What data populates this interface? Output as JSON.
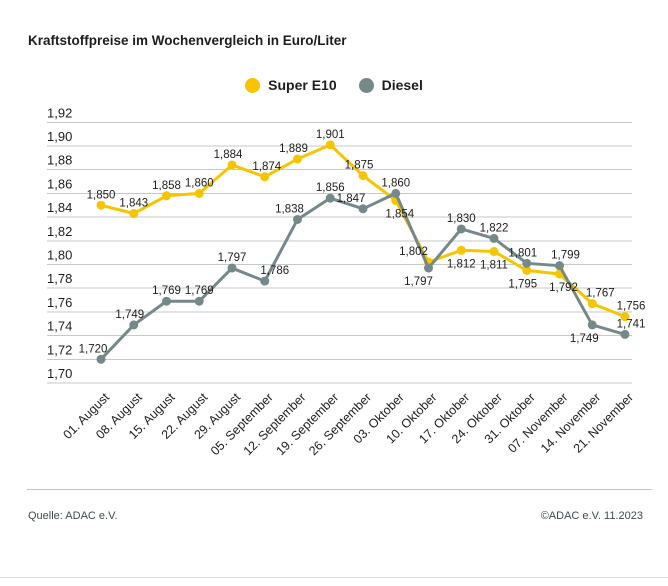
{
  "title": "Kraftstoffpreise im Wochenvergleich in Euro/Liter",
  "legend": {
    "items": [
      {
        "label": "Super E10",
        "color": "#f6c500"
      },
      {
        "label": "Diesel",
        "color": "#75898a"
      }
    ]
  },
  "footer": {
    "source": "Quelle: ADAC e.V.",
    "copyright": "©ADAC e.V. 11.2023"
  },
  "colors": {
    "text": "#1d1d1b",
    "grid": "#c5c9c9",
    "super_e10": "#f6c500",
    "diesel": "#75898a"
  },
  "chart_data": {
    "type": "line",
    "title": "Kraftstoffpreise im Wochenvergleich in Euro/Liter",
    "xlabel": "",
    "ylabel": "Euro/Liter",
    "ylim": [
      1.7,
      1.92
    ],
    "grid": true,
    "legend_position": "top-center",
    "categories": [
      "01. August",
      "08. August",
      "15. August",
      "22. August",
      "29. August",
      "05. September",
      "12. September",
      "19. September",
      "26. September",
      "03. Oktober",
      "10. Oktober",
      "17. Oktober",
      "24. Oktober",
      "31. Oktober",
      "07. November",
      "14. November",
      "21. November"
    ],
    "yticks": {
      "values": [
        1.7,
        1.72,
        1.74,
        1.76,
        1.78,
        1.8,
        1.82,
        1.84,
        1.86,
        1.88,
        1.9,
        1.92
      ],
      "labels": [
        "1,70",
        "1,72",
        "1,74",
        "1,76",
        "1,78",
        "1,80",
        "1,82",
        "1,84",
        "1,86",
        "1,88",
        "1,90",
        "1,92"
      ]
    },
    "series": [
      {
        "name": "Super E10",
        "color": "#f6c500",
        "values": [
          1.85,
          1.843,
          1.858,
          1.86,
          1.884,
          1.874,
          1.889,
          1.901,
          1.875,
          1.854,
          1.802,
          1.812,
          1.811,
          1.795,
          1.792,
          1.767,
          1.756
        ],
        "point_labels": [
          "1,850",
          "1,843",
          "1,858",
          "1,860",
          "1,884",
          "1,874",
          "1,889",
          "1,901",
          "1,875",
          "1,854",
          "1,802",
          "1,812",
          "1,811",
          "1,795",
          "1,792",
          "1,767",
          "1,756"
        ],
        "label_pos": [
          "above",
          "above",
          "above",
          "above",
          "above",
          "above",
          "above",
          "above",
          "above",
          "below",
          "above",
          "below",
          "below",
          "below",
          "below",
          "above",
          "above"
        ],
        "label_dx": [
          0,
          0,
          0,
          0,
          -4,
          2,
          -4,
          0,
          -4,
          4,
          -15,
          0,
          0,
          -4,
          4,
          8,
          6
        ]
      },
      {
        "name": "Diesel",
        "color": "#75898a",
        "values": [
          1.72,
          1.749,
          1.769,
          1.769,
          1.797,
          1.786,
          1.838,
          1.856,
          1.847,
          1.86,
          1.797,
          1.83,
          1.822,
          1.801,
          1.799,
          1.749,
          1.741
        ],
        "point_labels": [
          "1,720",
          "1,749",
          "1,769",
          "1,769",
          "1,797",
          "1,786",
          "1,838",
          "1,856",
          "1,847",
          "1,860",
          "1,797",
          "1,830",
          "1,822",
          "1,801",
          "1,799",
          "1,749",
          "1,741"
        ],
        "label_pos": [
          "above",
          "above",
          "above",
          "above",
          "above",
          "above",
          "above",
          "above",
          "above",
          "above",
          "below",
          "above",
          "above",
          "above",
          "above",
          "below",
          "above"
        ],
        "label_dx": [
          -8,
          -4,
          0,
          0,
          0,
          10,
          -8,
          0,
          -12,
          0,
          -10,
          0,
          0,
          -4,
          6,
          -8,
          6
        ]
      }
    ]
  }
}
